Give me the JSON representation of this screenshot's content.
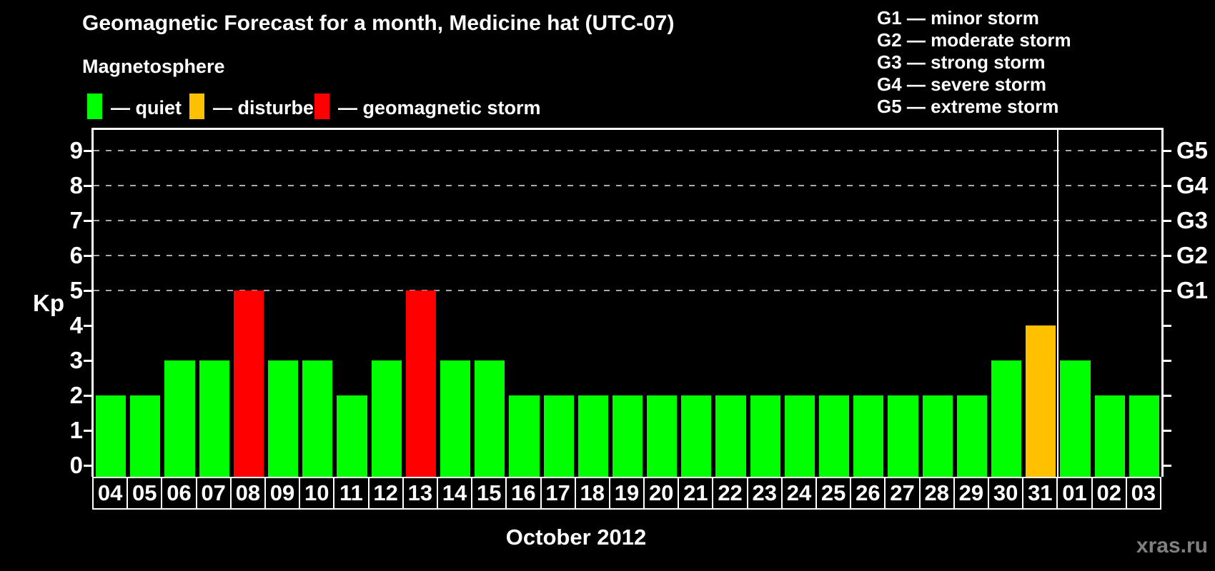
{
  "header": {
    "title": "Geomagnetic Forecast for a month, Medicine hat (UTC-07)",
    "subtitle": "Magnetosphere"
  },
  "legend": {
    "items": [
      {
        "name": "quiet",
        "label": "— quiet",
        "color": "#00ff00"
      },
      {
        "name": "disturbed",
        "label": "— disturbed",
        "color": "#ffc000"
      },
      {
        "name": "storm",
        "label": "— geomagnetic storm",
        "color": "#ff0000"
      }
    ]
  },
  "g_scale_legend": {
    "lines": [
      "G1 — minor storm",
      "G2 — moderate storm",
      "G3 — strong storm",
      "G4 — severe storm",
      "G5 — extreme storm"
    ]
  },
  "chart_data": {
    "type": "bar",
    "title": "Geomagnetic Forecast for a month, Medicine hat (UTC-07)",
    "subtitle": "Magnetosphere",
    "xlabel": "October 2012",
    "ylabel": "Kp",
    "ylim": [
      0,
      9
    ],
    "y_ticks": [
      0,
      1,
      2,
      3,
      4,
      5,
      6,
      7,
      8,
      9
    ],
    "gridlines_at_kp": [
      5,
      6,
      7,
      8,
      9
    ],
    "grid": "dashed horizontal lines at G-storm levels only",
    "legend_position": "top-left",
    "right_axis_labels": [
      {
        "kp": 5,
        "label": "G1"
      },
      {
        "kp": 6,
        "label": "G2"
      },
      {
        "kp": 7,
        "label": "G3"
      },
      {
        "kp": 8,
        "label": "G4"
      },
      {
        "kp": 9,
        "label": "G5"
      }
    ],
    "categories": [
      "04",
      "05",
      "06",
      "07",
      "08",
      "09",
      "10",
      "11",
      "12",
      "13",
      "14",
      "15",
      "16",
      "17",
      "18",
      "19",
      "20",
      "21",
      "22",
      "23",
      "24",
      "25",
      "26",
      "27",
      "28",
      "29",
      "30",
      "31",
      "01",
      "02",
      "03"
    ],
    "values": [
      2,
      2,
      3,
      3,
      5,
      3,
      3,
      2,
      3,
      5,
      3,
      3,
      2,
      2,
      2,
      2,
      2,
      2,
      2,
      2,
      2,
      2,
      2,
      2,
      2,
      2,
      3,
      4,
      3,
      2,
      2
    ],
    "statuses": [
      "quiet",
      "quiet",
      "quiet",
      "quiet",
      "storm",
      "quiet",
      "quiet",
      "quiet",
      "quiet",
      "storm",
      "quiet",
      "quiet",
      "quiet",
      "quiet",
      "quiet",
      "quiet",
      "quiet",
      "quiet",
      "quiet",
      "quiet",
      "quiet",
      "quiet",
      "quiet",
      "quiet",
      "quiet",
      "quiet",
      "quiet",
      "disturbed",
      "quiet",
      "quiet",
      "quiet"
    ],
    "status_colors": {
      "quiet": "#00ff00",
      "disturbed": "#ffc000",
      "storm": "#ff0000"
    },
    "month_separator_after_index": 27
  },
  "watermark": "xras.ru",
  "colors": {
    "background": "#000000",
    "text": "#ffffff",
    "frame": "#ffffff",
    "gridline": "#aaaaaa",
    "watermark": "#808080"
  }
}
